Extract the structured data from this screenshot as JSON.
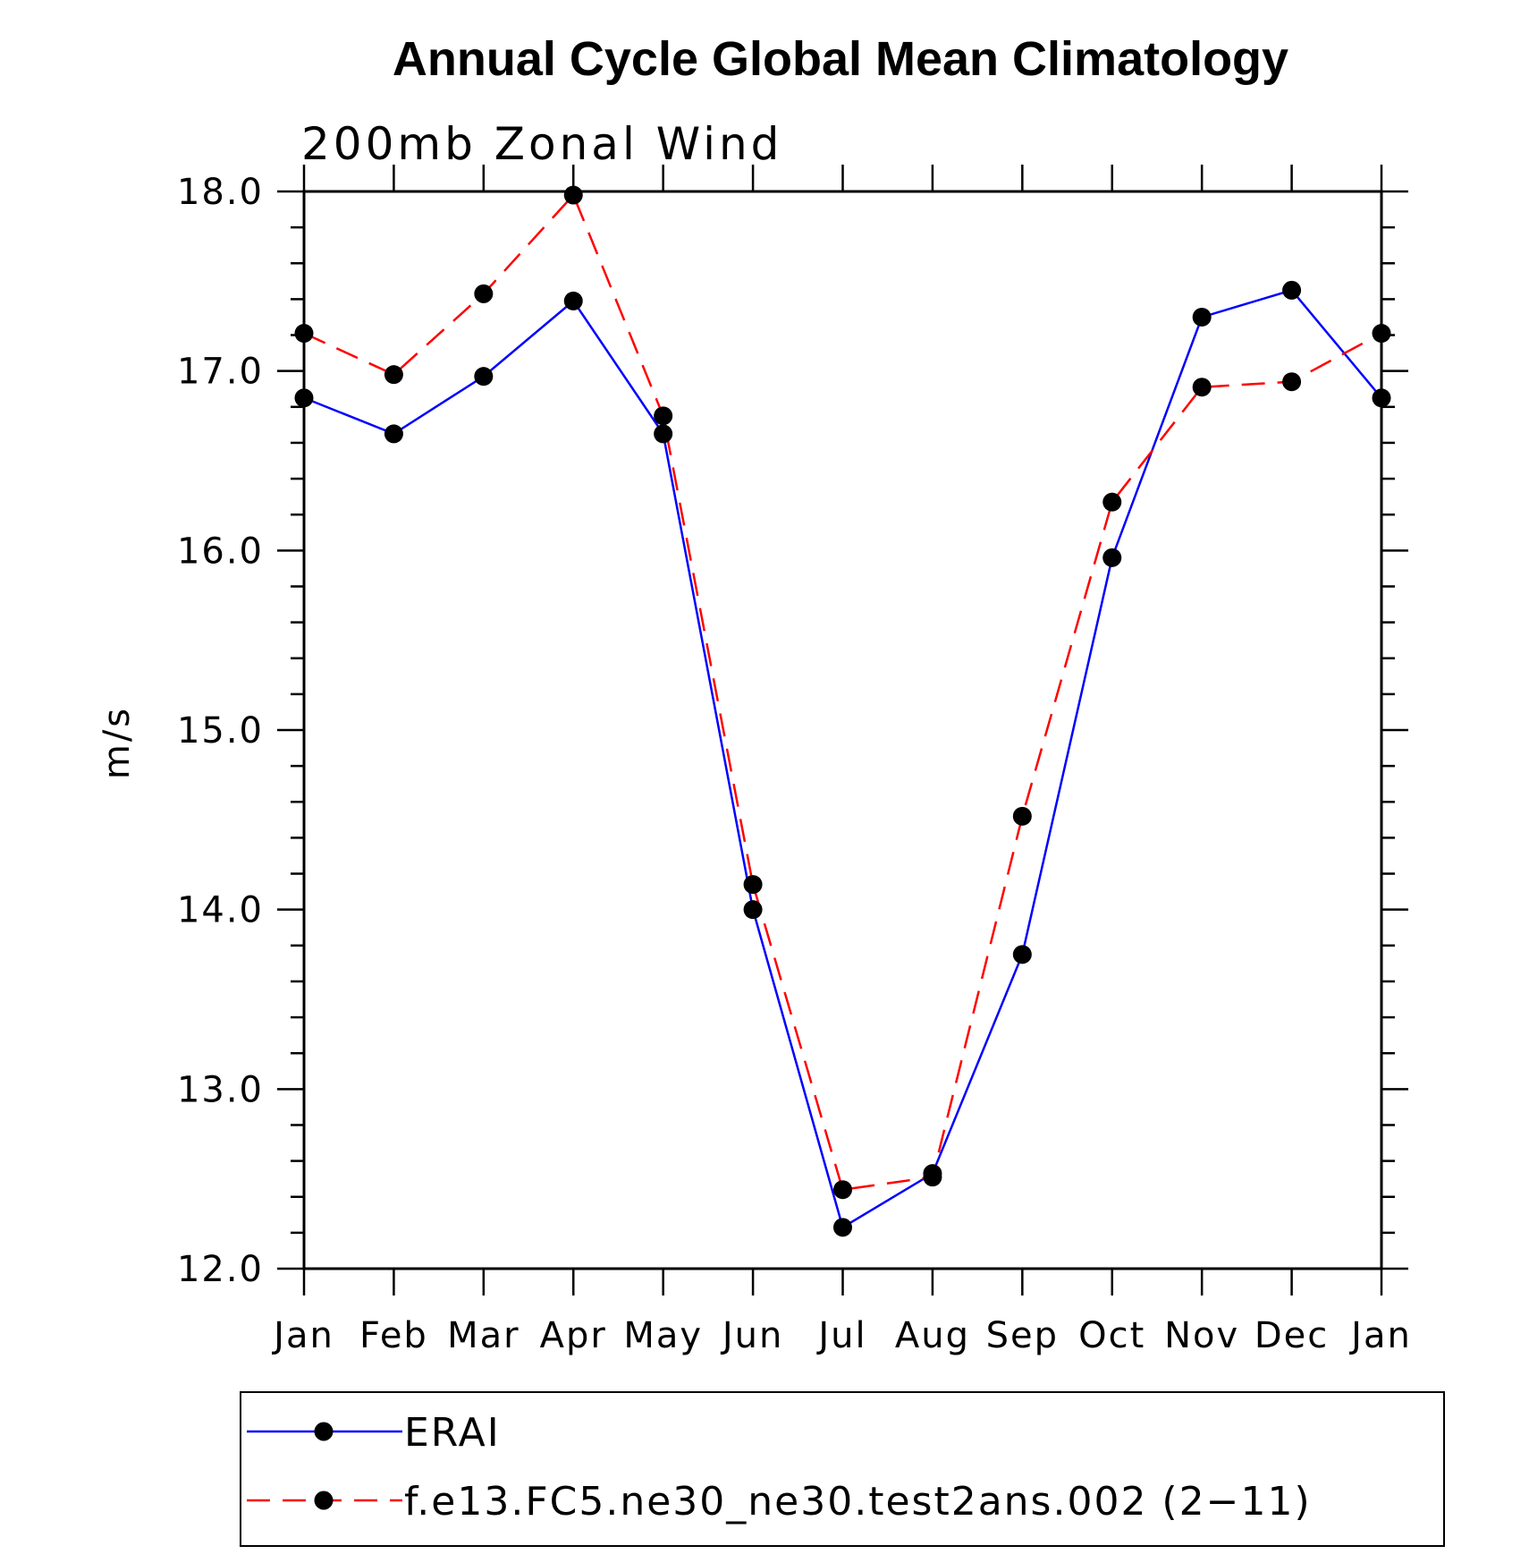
{
  "chart_data": {
    "type": "line",
    "title": "Annual Cycle Global Mean Climatology",
    "subtitle": "200mb Zonal Wind",
    "ylabel": "m/s",
    "xlabel": "",
    "categories": [
      "Jan",
      "Feb",
      "Mar",
      "Apr",
      "May",
      "Jun",
      "Jul",
      "Aug",
      "Sep",
      "Oct",
      "Nov",
      "Dec",
      "Jan"
    ],
    "ylim": [
      12.0,
      18.0
    ],
    "yticks": [
      "12.0",
      "13.0",
      "14.0",
      "15.0",
      "16.0",
      "17.0",
      "18.0"
    ],
    "grid": false,
    "legend_position": "bottom",
    "series": [
      {
        "name": "ERAI",
        "color": "#0000ff",
        "dash": "solid",
        "values": [
          16.85,
          16.65,
          16.97,
          17.39,
          16.65,
          14.0,
          12.23,
          12.53,
          13.75,
          15.96,
          17.3,
          17.45,
          16.85
        ]
      },
      {
        "name": "f.e13.FC5.ne30_ne30.test2ans.002 (2−11)",
        "color": "#ff0000",
        "dash": "dashed",
        "values": [
          17.21,
          16.98,
          17.43,
          17.98,
          16.75,
          14.14,
          12.44,
          12.51,
          14.52,
          16.27,
          16.91,
          16.94,
          17.21
        ]
      }
    ]
  }
}
